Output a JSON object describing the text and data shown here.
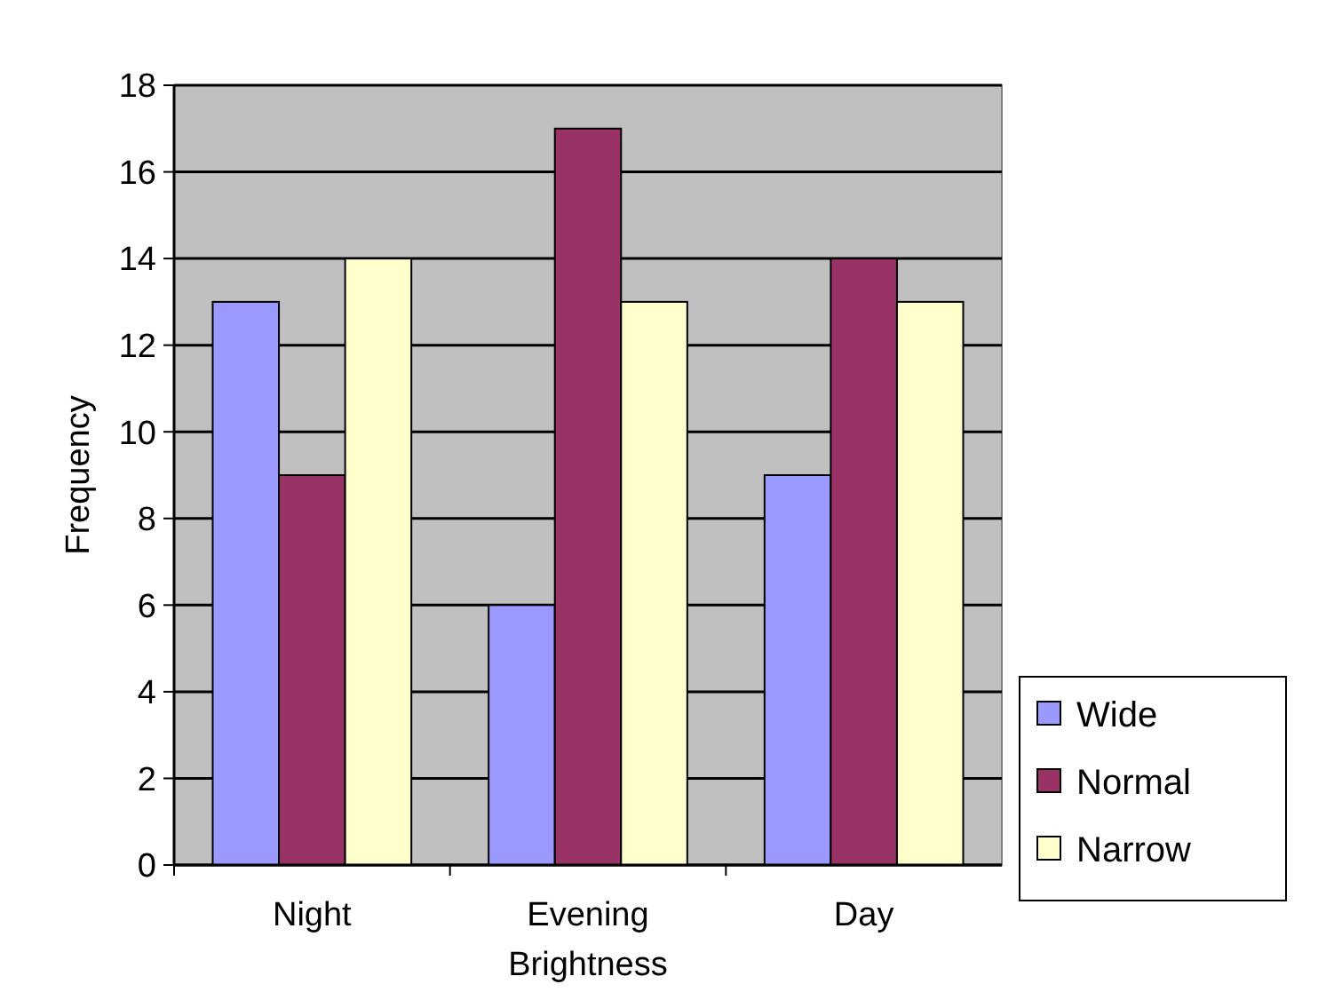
{
  "chart_data": {
    "type": "bar",
    "xlabel": "Brightness",
    "ylabel": "Frequency",
    "categories": [
      "Night",
      "Evening",
      "Day"
    ],
    "series": [
      {
        "name": "Wide",
        "color": "#9999ff",
        "values": [
          13,
          6,
          9
        ]
      },
      {
        "name": "Normal",
        "color": "#993366",
        "values": [
          9,
          17,
          14
        ]
      },
      {
        "name": "Narrow",
        "color": "#ffffcc",
        "values": [
          14,
          13,
          13
        ]
      }
    ],
    "ylim": [
      0,
      18
    ],
    "yticks": [
      0,
      2,
      4,
      6,
      8,
      10,
      12,
      14,
      16,
      18
    ],
    "grid": "y",
    "legend": "bottom right"
  }
}
